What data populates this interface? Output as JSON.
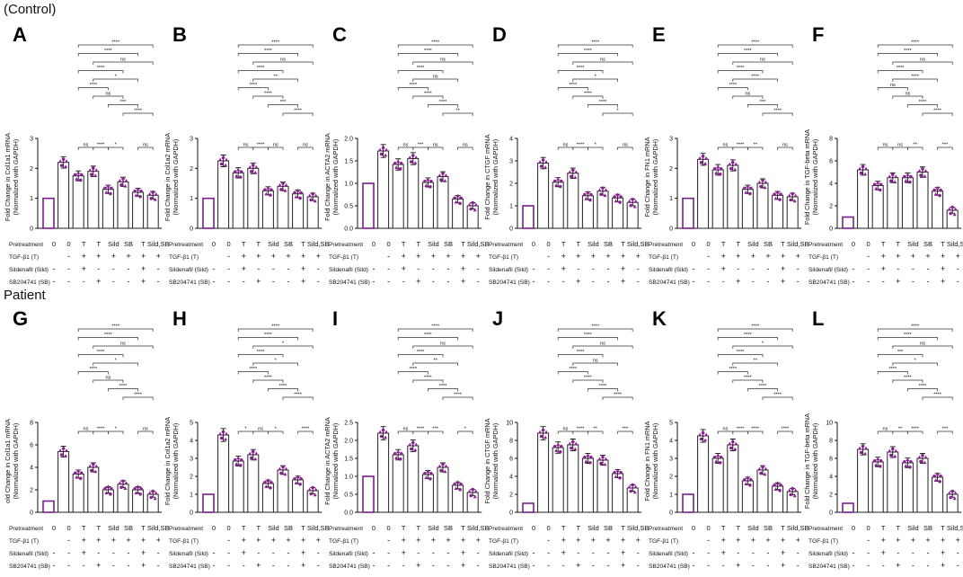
{
  "sections": {
    "control": "(Control)",
    "patient": "Patient"
  },
  "row_labels": [
    "Pretreatment",
    "TGF-β1 (T)",
    "Sildenafil (Sild)",
    "SB204741 (SB)"
  ],
  "groups": [
    "0",
    "0",
    "T",
    "T",
    "Sild",
    "SB",
    "T",
    "Sild,SB"
  ],
  "condition_rows": [
    [
      "",
      "-",
      "+",
      "+",
      "+",
      "+",
      "+",
      "+"
    ],
    [
      "-",
      "-",
      "+",
      "-",
      "-",
      "-",
      "+",
      "-"
    ],
    [
      "-",
      "-",
      "-",
      "+",
      "-",
      "-",
      "+",
      "-"
    ]
  ],
  "sig": {
    "pairs": [
      [
        2,
        7
      ],
      [
        2,
        6
      ],
      [
        2,
        5
      ],
      [
        2,
        4
      ],
      [
        3,
        7
      ],
      [
        3,
        6
      ],
      [
        3,
        5
      ],
      [
        3,
        4
      ],
      [
        4,
        6
      ],
      [
        5,
        7
      ],
      [
        2,
        3
      ],
      [
        4,
        5
      ],
      [
        6,
        7
      ]
    ],
    "labels": {
      "A": [
        "****",
        "****",
        "****",
        "****",
        "ns",
        "*",
        "ns",
        "****",
        "***",
        "****",
        "ns",
        "*",
        "ns"
      ],
      "B": [
        "****",
        "****",
        "****",
        "****",
        "ns",
        "**",
        "****",
        "****",
        "***",
        "****",
        "ns",
        "ns",
        "ns"
      ],
      "C": [
        "****",
        "****",
        "****",
        "****",
        "ns",
        "ns",
        "****",
        "***",
        "****",
        "**",
        "ns",
        "ns",
        "ns"
      ],
      "D": [
        "****",
        "****",
        "****",
        "****",
        "ns",
        "*",
        "****",
        "****",
        "****",
        "*",
        "ns",
        "*",
        "ns"
      ],
      "E": [
        "****",
        "****",
        "****",
        "****",
        "ns",
        "****",
        "ns",
        "****",
        "***",
        "****",
        "ns",
        "**",
        "ns"
      ],
      "F": [
        "****",
        "****",
        "****",
        "ns",
        "ns",
        "****",
        "ns",
        "ns",
        "****",
        "****",
        "ns",
        "**",
        "***"
      ],
      "G": [
        "****",
        "****",
        "****",
        "****",
        "ns",
        "*",
        "ns",
        "****",
        "****",
        "****",
        "ns",
        "*",
        "ns"
      ],
      "H": [
        "****",
        "****",
        "****",
        "****",
        "*",
        "*",
        "****",
        "ns",
        "****",
        "****",
        "*",
        "*",
        "****"
      ],
      "I": [
        "****",
        "****",
        "****",
        "****",
        "ns",
        "**",
        "****",
        "****",
        "****",
        "****",
        "ns",
        "***",
        "*"
      ],
      "J": [
        "****",
        "****",
        "****",
        "****",
        "ns",
        "ns",
        "****",
        "****",
        "****",
        "****",
        "ns",
        "**",
        "***"
      ],
      "K": [
        "****",
        "****",
        "****",
        "****",
        "*",
        "**",
        "****",
        "****",
        "****",
        "****",
        "ns",
        "****",
        "****"
      ],
      "L": [
        "****",
        "****",
        "***",
        "****",
        "ns",
        "*",
        "****",
        "**",
        "****",
        "****",
        "ns",
        "****",
        "***"
      ]
    }
  },
  "chart_data": [
    {
      "id": "A",
      "type": "bar",
      "ylabel": "Fold Change in Col1a1 mRNA\n(Normalized with GAPDH)",
      "ylim": [
        0,
        3
      ],
      "ticks": [
        0,
        1,
        2,
        3
      ],
      "values": [
        1.0,
        2.2,
        1.75,
        1.9,
        1.3,
        1.55,
        1.2,
        1.1
      ]
    },
    {
      "id": "B",
      "type": "bar",
      "ylabel": "Fold Change in Col1a2 mRNA\n(Normalized with GAPDH)",
      "ylim": [
        0,
        3
      ],
      "ticks": [
        0,
        1,
        2,
        3
      ],
      "values": [
        1.0,
        2.25,
        1.85,
        2.0,
        1.25,
        1.4,
        1.15,
        1.05
      ]
    },
    {
      "id": "C",
      "type": "bar",
      "ylabel": "Fold Change in ACTA2 mRNA\n(Normalized with GAPDH)",
      "ylim": [
        0,
        2.0
      ],
      "ticks": [
        0,
        0.5,
        1.0,
        1.5,
        2.0
      ],
      "ticklabels": [
        "0.0",
        "0.5",
        "1.0",
        "1.5",
        "2.0"
      ],
      "values": [
        1.0,
        1.72,
        1.42,
        1.55,
        1.02,
        1.15,
        0.65,
        0.5
      ]
    },
    {
      "id": "D",
      "type": "bar",
      "ylabel": "Fold Change in CTGF mRNA\n(Normalized with GAPDH)",
      "ylim": [
        0,
        4
      ],
      "ticks": [
        0,
        1,
        2,
        3,
        4
      ],
      "values": [
        1.0,
        2.9,
        2.05,
        2.45,
        1.45,
        1.65,
        1.35,
        1.15
      ]
    },
    {
      "id": "E",
      "type": "bar",
      "ylabel": "Fold Change in FN1 mRNA\n(Normalized with GAPDH)",
      "ylim": [
        0,
        3
      ],
      "ticks": [
        0,
        1,
        2,
        3
      ],
      "values": [
        1.0,
        2.3,
        1.95,
        2.1,
        1.3,
        1.5,
        1.1,
        1.05
      ]
    },
    {
      "id": "F",
      "type": "bar",
      "ylabel": "Fold Change in TGF-beta mRNA\n(Normalized with GAPDH)",
      "ylim": [
        0,
        8
      ],
      "ticks": [
        0,
        2,
        4,
        6,
        8
      ],
      "values": [
        1.0,
        5.2,
        3.8,
        4.5,
        4.5,
        5.0,
        3.3,
        1.6
      ]
    },
    {
      "id": "G",
      "type": "bar",
      "ylabel": "old Change in Col1a1 mRNA\n(Normalized with GAPDH)",
      "ylim": [
        0,
        8
      ],
      "ticks": [
        0,
        2,
        4,
        6,
        8
      ],
      "values": [
        1.0,
        5.4,
        3.4,
        4.0,
        2.0,
        2.5,
        2.0,
        1.6
      ]
    },
    {
      "id": "H",
      "type": "bar",
      "ylabel": "Fold Change in Col1a2 mRNA\n(Normalized with GAPDH)",
      "ylim": [
        0,
        5
      ],
      "ticks": [
        0,
        1,
        2,
        3,
        4,
        5
      ],
      "values": [
        1.0,
        4.3,
        2.85,
        3.2,
        1.6,
        2.35,
        1.8,
        1.2
      ]
    },
    {
      "id": "I",
      "type": "bar",
      "ylabel": "Fold Change in ACTA2 mRNA\n(Normalized with GAPDH)",
      "ylim": [
        0,
        2.5
      ],
      "ticks": [
        0,
        0.5,
        1.0,
        1.5,
        2.0,
        2.5
      ],
      "ticklabels": [
        "0.0",
        "0.5",
        "1.0",
        "1.5",
        "2.0",
        "2.5"
      ],
      "values": [
        1.0,
        2.2,
        1.6,
        1.85,
        1.05,
        1.25,
        0.75,
        0.55
      ]
    },
    {
      "id": "J",
      "type": "bar",
      "ylabel": "Fold Change in CTGF mRNA\n(Normalized with GAPDH)",
      "ylim": [
        0,
        10
      ],
      "ticks": [
        0,
        2,
        4,
        6,
        8,
        10
      ],
      "values": [
        1.0,
        8.8,
        7.2,
        7.5,
        6.0,
        5.8,
        4.3,
        2.7
      ]
    },
    {
      "id": "K",
      "type": "bar",
      "ylabel": "Fold Change in FN1 mRNA\n(Normalized with GAPDH)",
      "ylim": [
        0,
        5
      ],
      "ticks": [
        0,
        1,
        2,
        3,
        4,
        5
      ],
      "values": [
        1.0,
        4.25,
        3.0,
        3.75,
        1.75,
        2.35,
        1.45,
        1.15
      ]
    },
    {
      "id": "L",
      "type": "bar",
      "ylabel": "Fold Change in TGF-beta mRNA\n(Normalized with GAPDH)",
      "ylim": [
        0,
        10
      ],
      "ticks": [
        0,
        2,
        4,
        6,
        8,
        10
      ],
      "values": [
        1.0,
        7.0,
        5.6,
        6.7,
        5.5,
        6.0,
        3.9,
        2.0
      ]
    }
  ],
  "colors": {
    "bar_edge": "#222222",
    "first_bar": "#7b1d8f",
    "points": "#8a1f92",
    "sig": "#333333"
  }
}
